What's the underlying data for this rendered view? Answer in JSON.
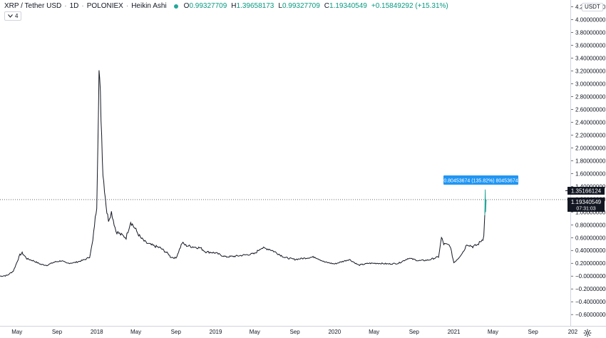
{
  "legend": {
    "symbol": "XRP / Tether USD",
    "interval": "1D",
    "exchange": "POLONIEX",
    "chart_style": "Heikin Ashi",
    "status_color": "#26a69a",
    "open_label": "O",
    "open_value": "0.99327709",
    "high_label": "H",
    "high_value": "1.39658173",
    "low_label": "L",
    "low_value": "0.99327709",
    "close_label": "C",
    "close_value": "1.19340549",
    "change": "+0.15849292 (+15.31%)"
  },
  "indicator_toggle": {
    "icon": "chevron-down-icon",
    "count": "4"
  },
  "currency_badge": "USDT",
  "measure_label": "0.80453674 (135.82%) 80453674",
  "price_labels": {
    "high_price": "1.35166124",
    "last_price": "1.19340549",
    "countdown": "07:31:03"
  },
  "settings_icon": "gear-icon",
  "colors": {
    "price_line": "#131722",
    "spike": "#26a69a",
    "measure_bg": "#2196f3",
    "last_price_bg": "#131722"
  },
  "chart_data": {
    "type": "line",
    "title": "XRP / Tether USD · 1D · POLONIEX · Heikin Ashi",
    "xlabel": "",
    "ylabel": "",
    "ylim": [
      -0.7,
      4.25
    ],
    "grid": false,
    "y_ticks": [
      "4.20000000",
      "4.00000000",
      "3.80000000",
      "3.60000000",
      "3.40000000",
      "3.20000000",
      "3.00000000",
      "2.80000000",
      "2.60000000",
      "2.40000000",
      "2.20000000",
      "2.00000000",
      "1.80000000",
      "1.60000000",
      "1.40000000",
      "1.20000000",
      "1.00000000",
      "0.80000000",
      "0.60000000",
      "0.40000000",
      "0.20000000",
      "−0.00000000",
      "−0.20000000",
      "−0.40000000",
      "−0.60000000"
    ],
    "x_ticks": [
      {
        "label": "May",
        "date": "2017-05-01"
      },
      {
        "label": "Sep",
        "date": "2017-09-01"
      },
      {
        "label": "2018",
        "date": "2018-01-01"
      },
      {
        "label": "May",
        "date": "2018-05-01"
      },
      {
        "label": "Sep",
        "date": "2018-09-01"
      },
      {
        "label": "2019",
        "date": "2019-01-01"
      },
      {
        "label": "May",
        "date": "2019-05-01"
      },
      {
        "label": "Sep",
        "date": "2019-09-01"
      },
      {
        "label": "2020",
        "date": "2020-01-01"
      },
      {
        "label": "May",
        "date": "2020-05-01"
      },
      {
        "label": "Sep",
        "date": "2020-09-01"
      },
      {
        "label": "2021",
        "date": "2021-01-01"
      },
      {
        "label": "May",
        "date": "2021-05-01"
      },
      {
        "label": "Sep",
        "date": "2021-09-01"
      },
      {
        "label": "202",
        "date": "2022-01-01"
      }
    ],
    "series": [
      {
        "x": [
          "2017-03-10",
          "2017-04-01",
          "2017-04-20",
          "2017-05-10",
          "2017-05-17",
          "2017-06-01",
          "2017-06-20",
          "2017-07-15",
          "2017-08-01",
          "2017-08-25",
          "2017-09-15",
          "2017-10-01",
          "2017-10-25",
          "2017-11-15",
          "2017-12-01",
          "2017-12-10",
          "2017-12-20",
          "2017-12-25",
          "2018-01-01",
          "2018-01-04",
          "2018-01-08",
          "2018-01-12",
          "2018-01-16",
          "2018-01-20",
          "2018-02-01",
          "2018-02-06",
          "2018-02-15",
          "2018-03-01",
          "2018-03-15",
          "2018-04-01",
          "2018-04-15",
          "2018-05-01",
          "2018-05-15",
          "2018-06-01",
          "2018-06-20",
          "2018-07-15",
          "2018-08-10",
          "2018-08-15",
          "2018-09-01",
          "2018-09-20",
          "2018-10-01",
          "2018-10-20",
          "2018-11-15",
          "2018-12-01",
          "2018-12-20",
          "2019-01-01",
          "2019-02-01",
          "2019-03-01",
          "2019-04-01",
          "2019-05-01",
          "2019-05-20",
          "2019-06-15",
          "2019-07-01",
          "2019-08-01",
          "2019-09-01",
          "2019-10-01",
          "2019-11-01",
          "2019-12-01",
          "2020-01-01",
          "2020-02-15",
          "2020-03-15",
          "2020-04-15",
          "2020-05-15",
          "2020-06-15",
          "2020-07-15",
          "2020-08-15",
          "2020-09-15",
          "2020-10-15",
          "2020-11-15",
          "2020-11-24",
          "2020-12-01",
          "2020-12-20",
          "2021-01-01",
          "2021-01-15",
          "2021-02-01",
          "2021-02-10",
          "2021-02-28",
          "2021-03-15",
          "2021-03-31",
          "2021-04-03",
          "2021-04-06",
          "2021-04-08",
          "2021-04-10"
        ],
        "y": [
          0.0,
          0.01,
          0.08,
          0.33,
          0.36,
          0.27,
          0.24,
          0.18,
          0.17,
          0.22,
          0.24,
          0.2,
          0.21,
          0.24,
          0.27,
          0.3,
          0.55,
          0.8,
          1.1,
          2.0,
          3.2,
          2.8,
          2.2,
          1.6,
          1.0,
          0.88,
          1.0,
          0.7,
          0.65,
          0.6,
          0.85,
          0.72,
          0.6,
          0.52,
          0.48,
          0.44,
          0.34,
          0.3,
          0.28,
          0.52,
          0.48,
          0.46,
          0.44,
          0.38,
          0.37,
          0.36,
          0.3,
          0.31,
          0.33,
          0.35,
          0.44,
          0.42,
          0.38,
          0.29,
          0.26,
          0.28,
          0.3,
          0.22,
          0.19,
          0.26,
          0.17,
          0.2,
          0.2,
          0.19,
          0.2,
          0.28,
          0.24,
          0.25,
          0.3,
          0.6,
          0.5,
          0.48,
          0.21,
          0.28,
          0.4,
          0.5,
          0.46,
          0.49,
          0.58,
          0.65,
          0.95,
          1.1,
          1.19
        ]
      }
    ],
    "annotations": [
      {
        "text": "0.80453674 (135.82%) 80453674",
        "type": "measure"
      },
      {
        "text": "1.35166124",
        "y": 1.35166124,
        "type": "price-label"
      },
      {
        "text": "1.19340549",
        "y": 1.19340549,
        "type": "last-price"
      },
      {
        "text": "07:31:03",
        "type": "countdown"
      }
    ]
  }
}
